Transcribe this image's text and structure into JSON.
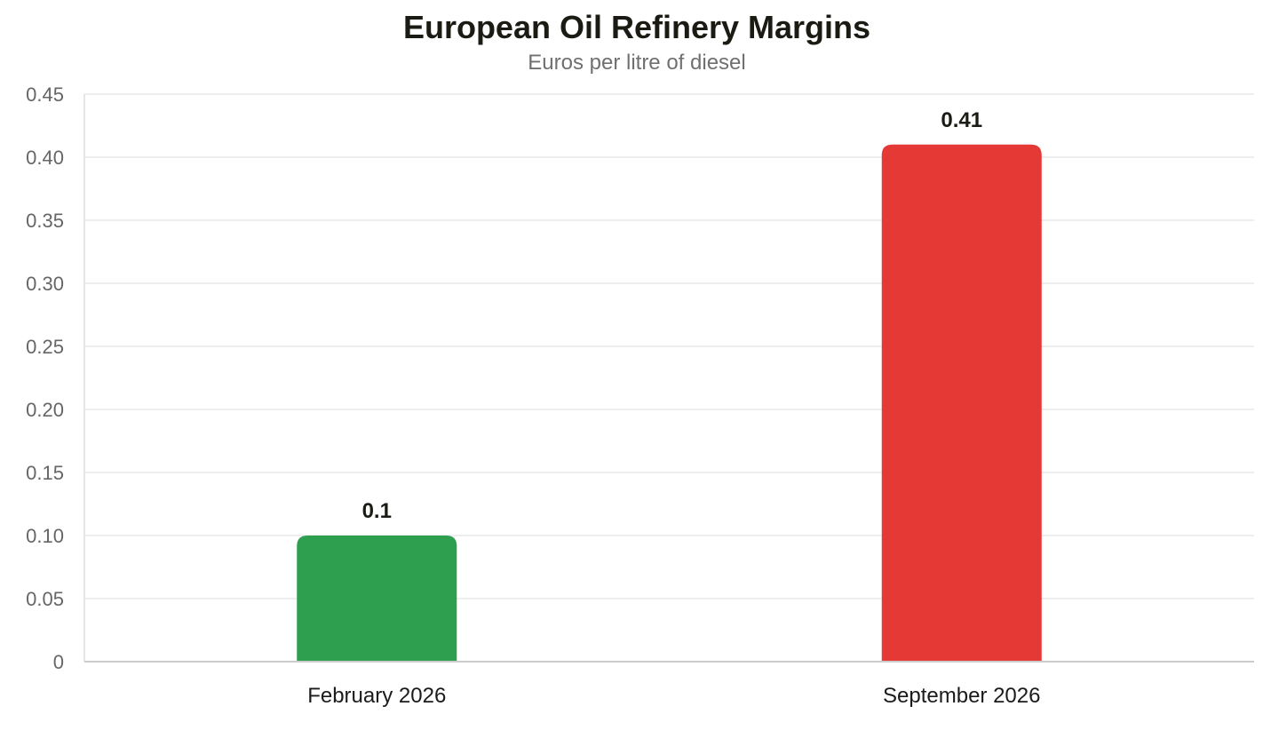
{
  "chart_data": {
    "type": "bar",
    "title": "European Oil Refinery Margins",
    "subtitle": "Euros per litre of diesel",
    "xlabel": "",
    "ylabel": "",
    "categories": [
      "February 2026",
      "September 2026"
    ],
    "values": [
      0.1,
      0.41
    ],
    "value_labels": [
      "0.1",
      "0.41"
    ],
    "bar_colors": [
      "#2e9e4f",
      "#e53935"
    ],
    "ylim": [
      0,
      0.45
    ],
    "yticks": [
      0,
      0.05,
      0.1,
      0.15,
      0.2,
      0.25,
      0.3,
      0.35,
      0.4,
      0.45
    ],
    "ytick_labels": [
      "0",
      "0.05",
      "0.10",
      "0.15",
      "0.20",
      "0.25",
      "0.30",
      "0.35",
      "0.40",
      "0.45"
    ],
    "grid": true,
    "legend": "none"
  }
}
